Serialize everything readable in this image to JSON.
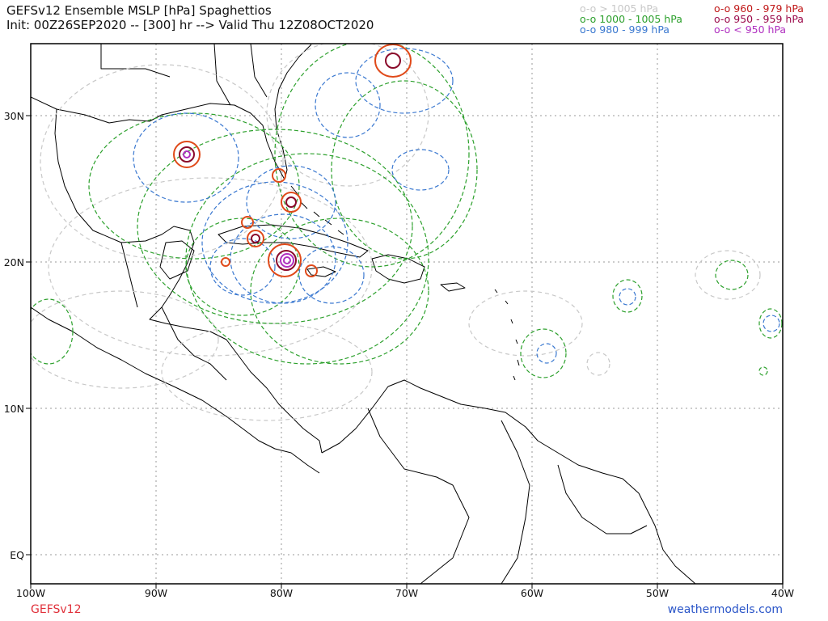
{
  "title_line1": "GEFSv12 Ensemble MSLP [hPa] Spaghettios",
  "title_line2": "Init: 00Z26SEP2020 -- [300] hr --> Valid Thu 12Z08OCT2020",
  "legend": [
    {
      "label": "o-o > 1005 hPa",
      "color": "#c8c8c8"
    },
    {
      "label": "o-o 1000 - 1005 hPa",
      "color": "#2ca02c"
    },
    {
      "label": "o-o 980 - 999 hPa",
      "color": "#3a78d0"
    },
    {
      "label": "o-o 960 - 979 hPa",
      "color": "#c01818"
    },
    {
      "label": "o-o 950 - 959 hPa",
      "color": "#9b0a4a"
    },
    {
      "label": "o-o < 950 hPa",
      "color": "#b030c0"
    }
  ],
  "lat_labels": [
    "30N",
    "20N",
    "10N",
    "EQ"
  ],
  "lon_labels": [
    "100W",
    "90W",
    "80W",
    "70W",
    "60W",
    "50W",
    "40W"
  ],
  "footer_left": "GEFSv12",
  "footer_right": "weathermodels.com"
}
